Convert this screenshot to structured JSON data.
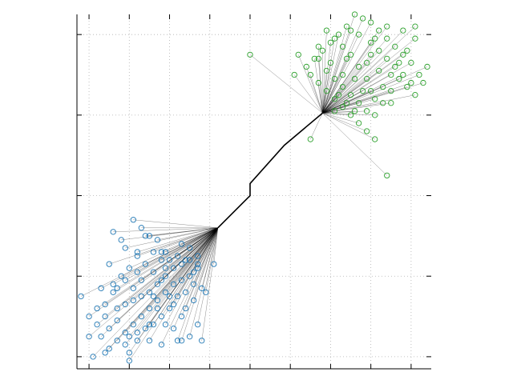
{
  "chart_data": {
    "type": "scatter",
    "title": "",
    "xlabel": "",
    "ylabel": "",
    "xlim": [
      -3.8,
      5.0
    ],
    "ylim": [
      -3.8,
      5.0
    ],
    "grid": true,
    "legend": "none",
    "colors": {
      "class_a": "#1f77b4",
      "class_b": "#2ca02c",
      "tree": "#000000",
      "grid": "#b0b0b0"
    },
    "trunk": [
      [
        -0.3,
        -0.3
      ],
      [
        0.5,
        0.5
      ],
      [
        0.5,
        0.8
      ],
      [
        1.35,
        1.75
      ],
      [
        2.3,
        2.55
      ]
    ],
    "series": [
      {
        "root": [
          -0.3,
          -0.3
        ],
        "points": [
          [
            -1.2,
            -0.7
          ],
          [
            -2.2,
            -0.3
          ],
          [
            -1.9,
            -0.9
          ],
          [
            -2.1,
            -0.5
          ],
          [
            -2.3,
            -1.4
          ],
          [
            -2.6,
            -0.8
          ],
          [
            -2.4,
            -1.8
          ],
          [
            -2.9,
            -1.7
          ],
          [
            -3.2,
            -1.8
          ],
          [
            -3.7,
            -2.0
          ],
          [
            -3.5,
            -3.0
          ],
          [
            -3.3,
            -2.7
          ],
          [
            -3.1,
            -2.5
          ],
          [
            -2.8,
            -2.3
          ],
          [
            -2.6,
            -2.2
          ],
          [
            -2.4,
            -2.1
          ],
          [
            -2.2,
            -2.0
          ],
          [
            -2.0,
            -1.9
          ],
          [
            -1.8,
            -1.7
          ],
          [
            -1.6,
            -1.5
          ],
          [
            -1.4,
            -1.3
          ],
          [
            -1.2,
            -1.2
          ],
          [
            -1.0,
            -1.1
          ],
          [
            -0.8,
            -1.3
          ],
          [
            -0.9,
            -1.4
          ],
          [
            -1.0,
            -1.5
          ],
          [
            -1.2,
            -1.6
          ],
          [
            -1.4,
            -1.7
          ],
          [
            -1.6,
            -1.9
          ],
          [
            -1.8,
            -2.1
          ],
          [
            -2.0,
            -2.3
          ],
          [
            -2.2,
            -2.5
          ],
          [
            -2.4,
            -2.7
          ],
          [
            -2.6,
            -2.9
          ],
          [
            -2.8,
            -3.1
          ],
          [
            -3.0,
            -3.3
          ],
          [
            -3.4,
            -3.5
          ],
          [
            -3.1,
            -3.4
          ],
          [
            -2.5,
            -3.4
          ],
          [
            -2.3,
            -3.1
          ],
          [
            -2.5,
            -3.6
          ],
          [
            -2.0,
            -3.1
          ],
          [
            -1.7,
            -3.2
          ],
          [
            -1.2,
            -3.1
          ],
          [
            -1.0,
            -3.0
          ],
          [
            -0.8,
            -2.7
          ],
          [
            -1.2,
            -2.5
          ],
          [
            -1.4,
            -2.2
          ],
          [
            -1.5,
            -2.0
          ],
          [
            -1.7,
            -1.6
          ],
          [
            -1.9,
            -1.4
          ],
          [
            -2.1,
            -1.2
          ],
          [
            -2.3,
            -1.0
          ],
          [
            -2.5,
            -1.3
          ],
          [
            -2.7,
            -1.5
          ],
          [
            -2.9,
            -1.9
          ],
          [
            -3.1,
            -2.2
          ],
          [
            -3.3,
            -2.3
          ],
          [
            -3.5,
            -2.5
          ],
          [
            -3.0,
            -1.2
          ],
          [
            -2.7,
            -0.6
          ],
          [
            -2.0,
            -0.5
          ],
          [
            -1.6,
            -0.9
          ],
          [
            -1.3,
            -1.0
          ],
          [
            -1.0,
            -0.8
          ],
          [
            -0.9,
            -1.7
          ],
          [
            -0.7,
            -1.8
          ],
          [
            -1.1,
            -1.9
          ],
          [
            -1.3,
            -2.0
          ],
          [
            -1.5,
            -2.3
          ],
          [
            -1.7,
            -2.5
          ],
          [
            -1.9,
            -2.7
          ],
          [
            -2.1,
            -2.8
          ],
          [
            -2.3,
            -2.9
          ],
          [
            -1.6,
            -2.7
          ],
          [
            -1.4,
            -2.8
          ],
          [
            -1.1,
            -2.3
          ],
          [
            -0.9,
            -2.1
          ],
          [
            -0.6,
            -1.9
          ],
          [
            -0.4,
            -1.2
          ],
          [
            -0.8,
            -1.0
          ],
          [
            -2.5,
            -3.0
          ],
          [
            -2.8,
            -2.6
          ],
          [
            -3.2,
            -3.0
          ],
          [
            -1.9,
            -2.0
          ],
          [
            -2.6,
            -1.6
          ],
          [
            -2.3,
            -0.9
          ],
          [
            -1.7,
            -1.1
          ],
          [
            -1.1,
            -1.1
          ],
          [
            -0.8,
            -1.2
          ],
          [
            -2.9,
            -0.4
          ],
          [
            -2.4,
            -0.1
          ],
          [
            -1.7,
            -0.9
          ],
          [
            -1.3,
            -3.1
          ],
          [
            -2.6,
            -3.2
          ],
          [
            -3.0,
            -2.8
          ],
          [
            -2.0,
            -2.7
          ],
          [
            -1.5,
            -1.1
          ],
          [
            -1.8,
            -0.6
          ],
          [
            -0.7,
            -3.1
          ],
          [
            -1.8,
            -2.3
          ],
          [
            -1.6,
            -1.3
          ],
          [
            -2.2,
            -1.6
          ],
          [
            -2.8,
            -1.8
          ]
        ]
      },
      {
        "root": [
          2.3,
          2.55
        ],
        "points": [
          [
            0.5,
            4.0
          ],
          [
            1.7,
            4.0
          ],
          [
            1.6,
            3.5
          ],
          [
            3.0,
            4.6
          ],
          [
            3.2,
            4.5
          ],
          [
            3.5,
            4.3
          ],
          [
            3.7,
            4.1
          ],
          [
            3.9,
            3.9
          ],
          [
            4.1,
            3.7
          ],
          [
            4.3,
            3.5
          ],
          [
            4.5,
            3.3
          ],
          [
            4.7,
            3.5
          ],
          [
            4.9,
            3.7
          ],
          [
            4.5,
            3.8
          ],
          [
            4.3,
            4.0
          ],
          [
            4.1,
            4.2
          ],
          [
            3.9,
            4.4
          ],
          [
            3.7,
            4.6
          ],
          [
            3.5,
            4.8
          ],
          [
            3.3,
            4.9
          ],
          [
            3.1,
            5.0
          ],
          [
            2.9,
            4.7
          ],
          [
            2.7,
            4.5
          ],
          [
            2.5,
            4.3
          ],
          [
            2.3,
            4.1
          ],
          [
            2.1,
            3.9
          ],
          [
            1.9,
            3.7
          ],
          [
            2.0,
            3.5
          ],
          [
            2.2,
            3.3
          ],
          [
            2.4,
            3.1
          ],
          [
            2.6,
            2.9
          ],
          [
            2.8,
            2.7
          ],
          [
            3.0,
            2.5
          ],
          [
            3.2,
            2.3
          ],
          [
            3.4,
            2.1
          ],
          [
            3.6,
            2.5
          ],
          [
            3.8,
            2.8
          ],
          [
            4.0,
            3.1
          ],
          [
            4.2,
            3.4
          ],
          [
            3.4,
            3.4
          ],
          [
            3.2,
            3.7
          ],
          [
            3.0,
            4.0
          ],
          [
            2.8,
            4.2
          ],
          [
            2.6,
            4.4
          ],
          [
            2.4,
            4.6
          ],
          [
            2.2,
            3.9
          ],
          [
            2.4,
            3.6
          ],
          [
            2.6,
            3.4
          ],
          [
            2.8,
            3.2
          ],
          [
            3.0,
            3.0
          ],
          [
            3.2,
            2.8
          ],
          [
            3.4,
            2.6
          ],
          [
            3.6,
            2.9
          ],
          [
            3.8,
            3.2
          ],
          [
            4.0,
            3.5
          ],
          [
            4.2,
            3.8
          ],
          [
            4.4,
            4.1
          ],
          [
            4.6,
            4.4
          ],
          [
            4.4,
            3.2
          ],
          [
            4.6,
            3.0
          ],
          [
            4.8,
            3.3
          ],
          [
            3.9,
            1.0
          ],
          [
            3.6,
            1.9
          ],
          [
            2.0,
            1.9
          ],
          [
            2.8,
            3.5
          ],
          [
            3.3,
            3.1
          ],
          [
            3.7,
            3.6
          ],
          [
            3.5,
            4.0
          ],
          [
            2.5,
            3.8
          ],
          [
            2.9,
            2.8
          ],
          [
            3.1,
            3.4
          ],
          [
            2.7,
            3.0
          ],
          [
            4.3,
            4.6
          ],
          [
            4.6,
            4.7
          ],
          [
            3.6,
            4.4
          ],
          [
            2.9,
            3.9
          ],
          [
            3.4,
            3.8
          ],
          [
            2.2,
            4.2
          ],
          [
            2.6,
            2.6
          ],
          [
            3.1,
            2.6
          ],
          [
            3.9,
            4.7
          ],
          [
            4.0,
            2.8
          ],
          [
            3.5,
            3.1
          ]
        ]
      }
    ]
  }
}
